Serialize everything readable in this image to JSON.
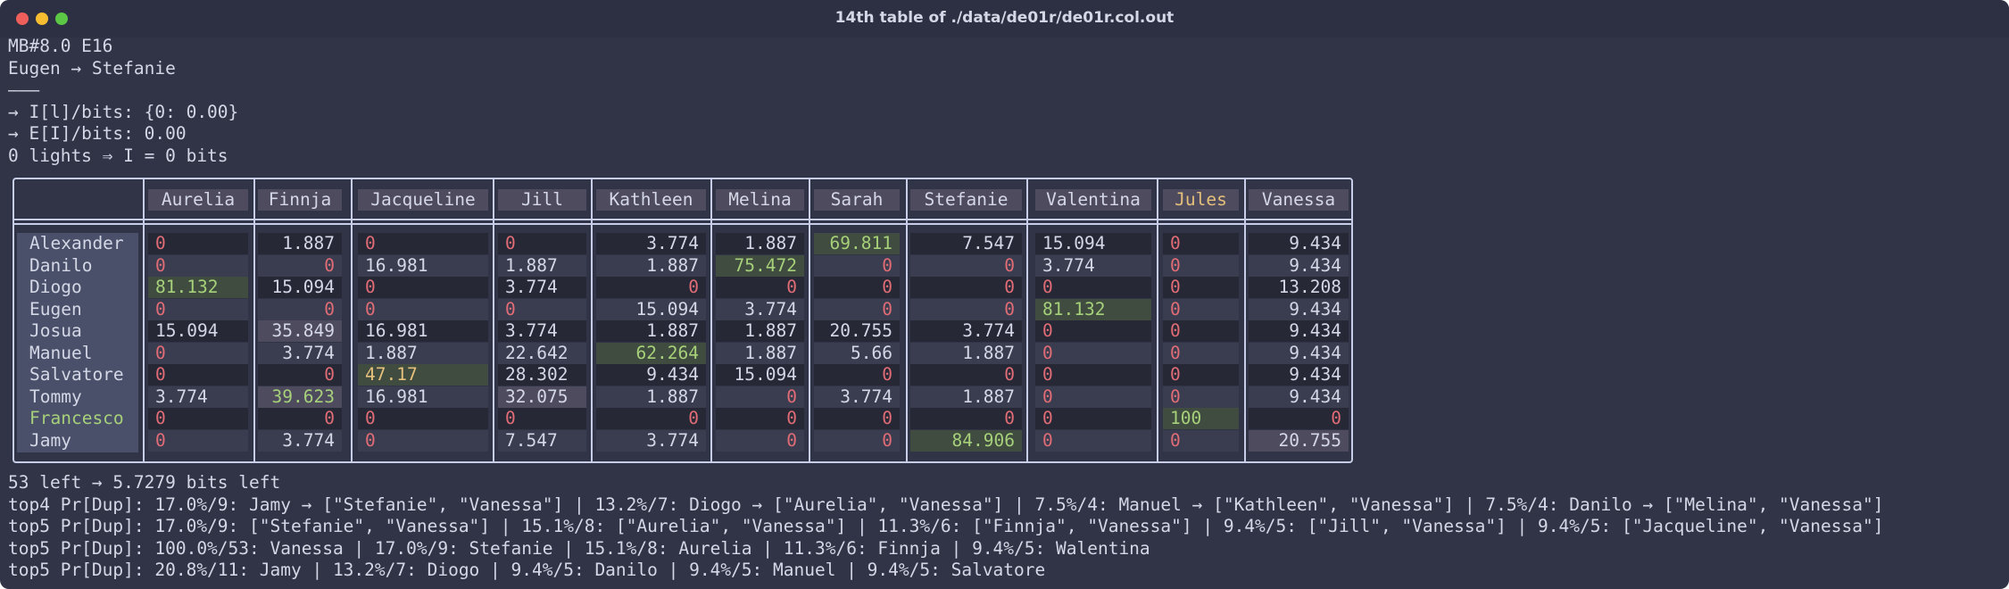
{
  "window": {
    "title": "14th table of ./data/de01r/de01r.col.out"
  },
  "header_lines": [
    "MB#8.0 E16",
    "Eugen → Stefanie",
    "———",
    "→ I[l]/bits: {0: 0.00}",
    "→ E[I]/bits: 0.00",
    "0 lights ⇒ I = 0 bits"
  ],
  "table": {
    "columns": [
      "Aurelia",
      "Finnja",
      "Jacqueline",
      "Jill",
      "Kathleen",
      "Melina",
      "Sarah",
      "Stefanie",
      "Valentina",
      "Jules",
      "Vanessa"
    ],
    "rows": [
      {
        "name": "Alexander",
        "cells": [
          "0",
          "1.887",
          "0",
          "0",
          "3.774",
          "1.887",
          "69.811",
          "7.547",
          "15.094",
          "0",
          "9.434"
        ]
      },
      {
        "name": "Danilo",
        "cells": [
          "0",
          "0",
          "16.981",
          "1.887",
          "1.887",
          "75.472",
          "0",
          "0",
          "3.774",
          "0",
          "9.434"
        ]
      },
      {
        "name": "Diogo",
        "cells": [
          "81.132",
          "15.094",
          "0",
          "3.774",
          "0",
          "0",
          "0",
          "0",
          "0",
          "0",
          "13.208"
        ]
      },
      {
        "name": "Eugen",
        "cells": [
          "0",
          "0",
          "0",
          "0",
          "15.094",
          "3.774",
          "0",
          "0",
          "81.132",
          "0",
          "9.434"
        ]
      },
      {
        "name": "Josua",
        "cells": [
          "15.094",
          "35.849",
          "16.981",
          "3.774",
          "1.887",
          "1.887",
          "20.755",
          "3.774",
          "0",
          "0",
          "9.434"
        ]
      },
      {
        "name": "Manuel",
        "cells": [
          "0",
          "3.774",
          "1.887",
          "22.642",
          "62.264",
          "1.887",
          "5.66",
          "1.887",
          "0",
          "0",
          "9.434"
        ]
      },
      {
        "name": "Salvatore",
        "cells": [
          "0",
          "0",
          "47.17",
          "28.302",
          "9.434",
          "15.094",
          "0",
          "0",
          "0",
          "0",
          "9.434"
        ]
      },
      {
        "name": "Tommy",
        "cells": [
          "3.774",
          "39.623",
          "16.981",
          "32.075",
          "1.887",
          "0",
          "3.774",
          "1.887",
          "0",
          "0",
          "9.434"
        ]
      },
      {
        "name": "Francesco",
        "cells": [
          "0",
          "0",
          "0",
          "0",
          "0",
          "0",
          "0",
          "0",
          "0",
          "100",
          "0"
        ]
      },
      {
        "name": "Jamy",
        "cells": [
          "0",
          "3.774",
          "0",
          "7.547",
          "3.774",
          "0",
          "0",
          "84.906",
          "0",
          "0",
          "20.755"
        ]
      }
    ]
  },
  "footer_lines": [
    "53 left → 5.7279 bits left",
    "top4 Pr[Dup]: 17.0%/9: Jamy → [\"Stefanie\", \"Vanessa\"] | 13.2%/7: Diogo → [\"Aurelia\", \"Vanessa\"] | 7.5%/4: Manuel → [\"Kathleen\", \"Vanessa\"] | 7.5%/4: Danilo → [\"Melina\", \"Vanessa\"]",
    "top5 Pr[Dup]: 17.0%/9: [\"Stefanie\", \"Vanessa\"] | 15.1%/8: [\"Aurelia\", \"Vanessa\"] | 11.3%/6: [\"Finnja\", \"Vanessa\"] | 9.4%/5: [\"Jill\", \"Vanessa\"] | 9.4%/5: [\"Jacqueline\", \"Vanessa\"]",
    "top5 Pr[Dup]: 100.0%/53: Vanessa | 17.0%/9: Stefanie | 15.1%/8: Aurelia | 11.3%/6: Finnja | 9.4%/5: Walentina",
    "top5 Pr[Dup]: 20.8%/11: Jamy | 13.2%/7: Diogo | 9.4%/5: Danilo | 9.4%/5: Manuel | 9.4%/5: Salvatore"
  ],
  "colors": {
    "zero": "#e06c75",
    "normal": "#d4d7e6",
    "highlight": "#a6d07a",
    "yellow": "#e5c07b",
    "cell_dark": "#262836",
    "cell_mid": "#3a3d50",
    "cell_green": "#3f4c3f",
    "cell_purple": "#4f4b5e",
    "cell_gray": "#4a5069"
  }
}
